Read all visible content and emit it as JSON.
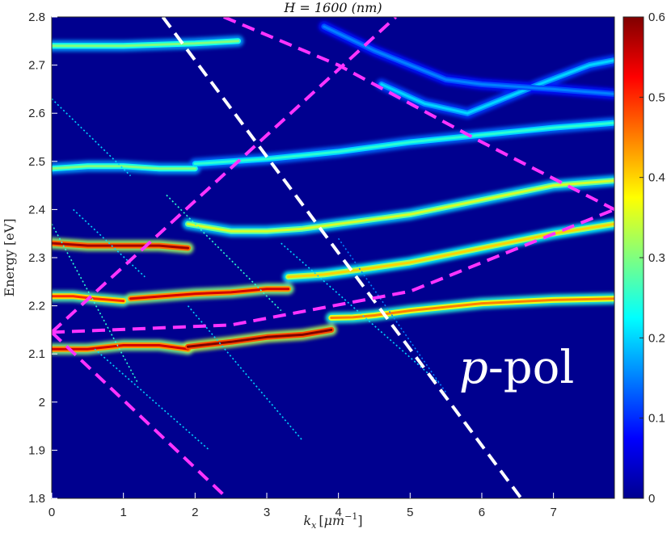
{
  "chart_data": {
    "type": "heatmap",
    "title": "H = 1600 (nm)",
    "xlabel": "k_x [μm^-1]",
    "ylabel": "Energy [eV]",
    "xlim": [
      0,
      7.85
    ],
    "ylim": [
      1.8,
      2.8
    ],
    "x_ticks": [
      "0",
      "1",
      "2",
      "3",
      "4",
      "5",
      "6",
      "7"
    ],
    "y_ticks": [
      "1.8",
      "1.9",
      "2",
      "2.1",
      "2.2",
      "2.3",
      "2.4",
      "2.5",
      "2.6",
      "2.7",
      "2.8"
    ],
    "colorbar": {
      "range": [
        0,
        0.6
      ],
      "ticks": [
        "0",
        "0.1",
        "0.2",
        "0.3",
        "0.4",
        "0.5",
        "0.6"
      ],
      "colormap": "jet"
    },
    "annotation": "p-pol",
    "background_color": "#00008f",
    "bands": [
      {
        "x": [
          0,
          0.5,
          1.0,
          1.5,
          1.9
        ],
        "y": [
          2.11,
          2.11,
          2.118,
          2.118,
          2.11
        ],
        "intensity": 0.55
      },
      {
        "x": [
          1.9,
          2.5,
          3.0,
          3.5,
          3.9
        ],
        "y": [
          2.115,
          2.125,
          2.135,
          2.14,
          2.15
        ],
        "intensity": 0.6
      },
      {
        "x": [
          3.9,
          4.2,
          4.5,
          5.0,
          6.0,
          7.0,
          7.85
        ],
        "y": [
          2.175,
          2.176,
          2.18,
          2.19,
          2.205,
          2.212,
          2.215
        ],
        "intensity": 0.45
      },
      {
        "x": [
          0,
          0.3,
          0.6,
          1.0
        ],
        "y": [
          2.22,
          2.22,
          2.215,
          2.21
        ],
        "intensity": 0.5
      },
      {
        "x": [
          1.1,
          2.0,
          2.5,
          3.0,
          3.3
        ],
        "y": [
          2.215,
          2.225,
          2.228,
          2.235,
          2.235
        ],
        "intensity": 0.55
      },
      {
        "x": [
          3.3,
          3.8,
          4.3,
          5.0,
          6.0,
          7.0,
          7.85
        ],
        "y": [
          2.26,
          2.265,
          2.275,
          2.29,
          2.32,
          2.35,
          2.37
        ],
        "intensity": 0.4
      },
      {
        "x": [
          0,
          0.5,
          1.0,
          1.5,
          1.9
        ],
        "y": [
          2.33,
          2.325,
          2.325,
          2.325,
          2.32
        ],
        "intensity": 0.58
      },
      {
        "x": [
          1.9,
          2.5,
          3.0,
          3.5,
          4.0,
          5.0,
          6.0,
          7.0,
          7.85
        ],
        "y": [
          2.37,
          2.355,
          2.355,
          2.36,
          2.37,
          2.39,
          2.42,
          2.45,
          2.46
        ],
        "intensity": 0.35
      },
      {
        "x": [
          0,
          0.5,
          1.0,
          1.5,
          2.0
        ],
        "y": [
          2.485,
          2.49,
          2.49,
          2.485,
          2.485
        ],
        "intensity": 0.3
      },
      {
        "x": [
          2.0,
          3.0,
          4.0,
          5.0,
          6.0,
          7.0,
          7.85
        ],
        "y": [
          2.495,
          2.505,
          2.52,
          2.54,
          2.555,
          2.57,
          2.58
        ],
        "intensity": 0.25
      },
      {
        "x": [
          4.6,
          5.2,
          5.8,
          6.3,
          6.8,
          7.5,
          7.85
        ],
        "y": [
          2.66,
          2.62,
          2.6,
          2.63,
          2.66,
          2.7,
          2.71
        ],
        "intensity": 0.2
      },
      {
        "x": [
          3.8,
          4.5,
          5.0,
          5.5,
          6.0,
          7.0,
          7.85
        ],
        "y": [
          2.78,
          2.73,
          2.7,
          2.67,
          2.66,
          2.65,
          2.64
        ],
        "intensity": 0.15
      },
      {
        "x": [
          0,
          1.0,
          2.0,
          2.6
        ],
        "y": [
          2.74,
          2.74,
          2.745,
          2.75
        ],
        "intensity": 0.3
      }
    ],
    "diagonal_lines": [
      {
        "x": [
          0,
          1.2
        ],
        "y": [
          2.37,
          2.04
        ],
        "intensity": 0.25
      },
      {
        "x": [
          0,
          1.1
        ],
        "y": [
          2.63,
          2.47
        ],
        "intensity": 0.2
      },
      {
        "x": [
          0.3,
          1.3
        ],
        "y": [
          2.4,
          2.26
        ],
        "intensity": 0.2
      },
      {
        "x": [
          0.6,
          2.2
        ],
        "y": [
          2.11,
          1.9
        ],
        "intensity": 0.2
      },
      {
        "x": [
          1.6,
          3.2
        ],
        "y": [
          2.43,
          2.19
        ],
        "intensity": 0.25
      },
      {
        "x": [
          1.9,
          3.5
        ],
        "y": [
          2.2,
          1.92
        ],
        "intensity": 0.2
      },
      {
        "x": [
          3.2,
          5.4
        ],
        "y": [
          2.33,
          2.04
        ],
        "intensity": 0.2
      },
      {
        "x": [
          4.0,
          5.5
        ],
        "y": [
          2.34,
          2.02
        ],
        "intensity": 0.15
      }
    ],
    "dashed_lines": [
      {
        "color": "#ffffff",
        "x": [
          1.55,
          6.55
        ],
        "y": [
          2.8,
          1.8
        ]
      },
      {
        "color": "#ff33ff",
        "x": [
          0,
          2.45
        ],
        "y": [
          2.145,
          1.8
        ]
      },
      {
        "color": "#ff33ff",
        "x": [
          0,
          4.8
        ],
        "y": [
          2.145,
          2.8
        ]
      },
      {
        "color": "#ff33ff",
        "x": [
          0,
          2.5,
          5.0,
          7.85
        ],
        "y": [
          2.145,
          2.16,
          2.23,
          2.4
        ]
      },
      {
        "color": "#ff33ff",
        "x": [
          2.4,
          4.0,
          6.0,
          7.85
        ],
        "y": [
          2.8,
          2.7,
          2.54,
          2.4
        ]
      }
    ]
  }
}
